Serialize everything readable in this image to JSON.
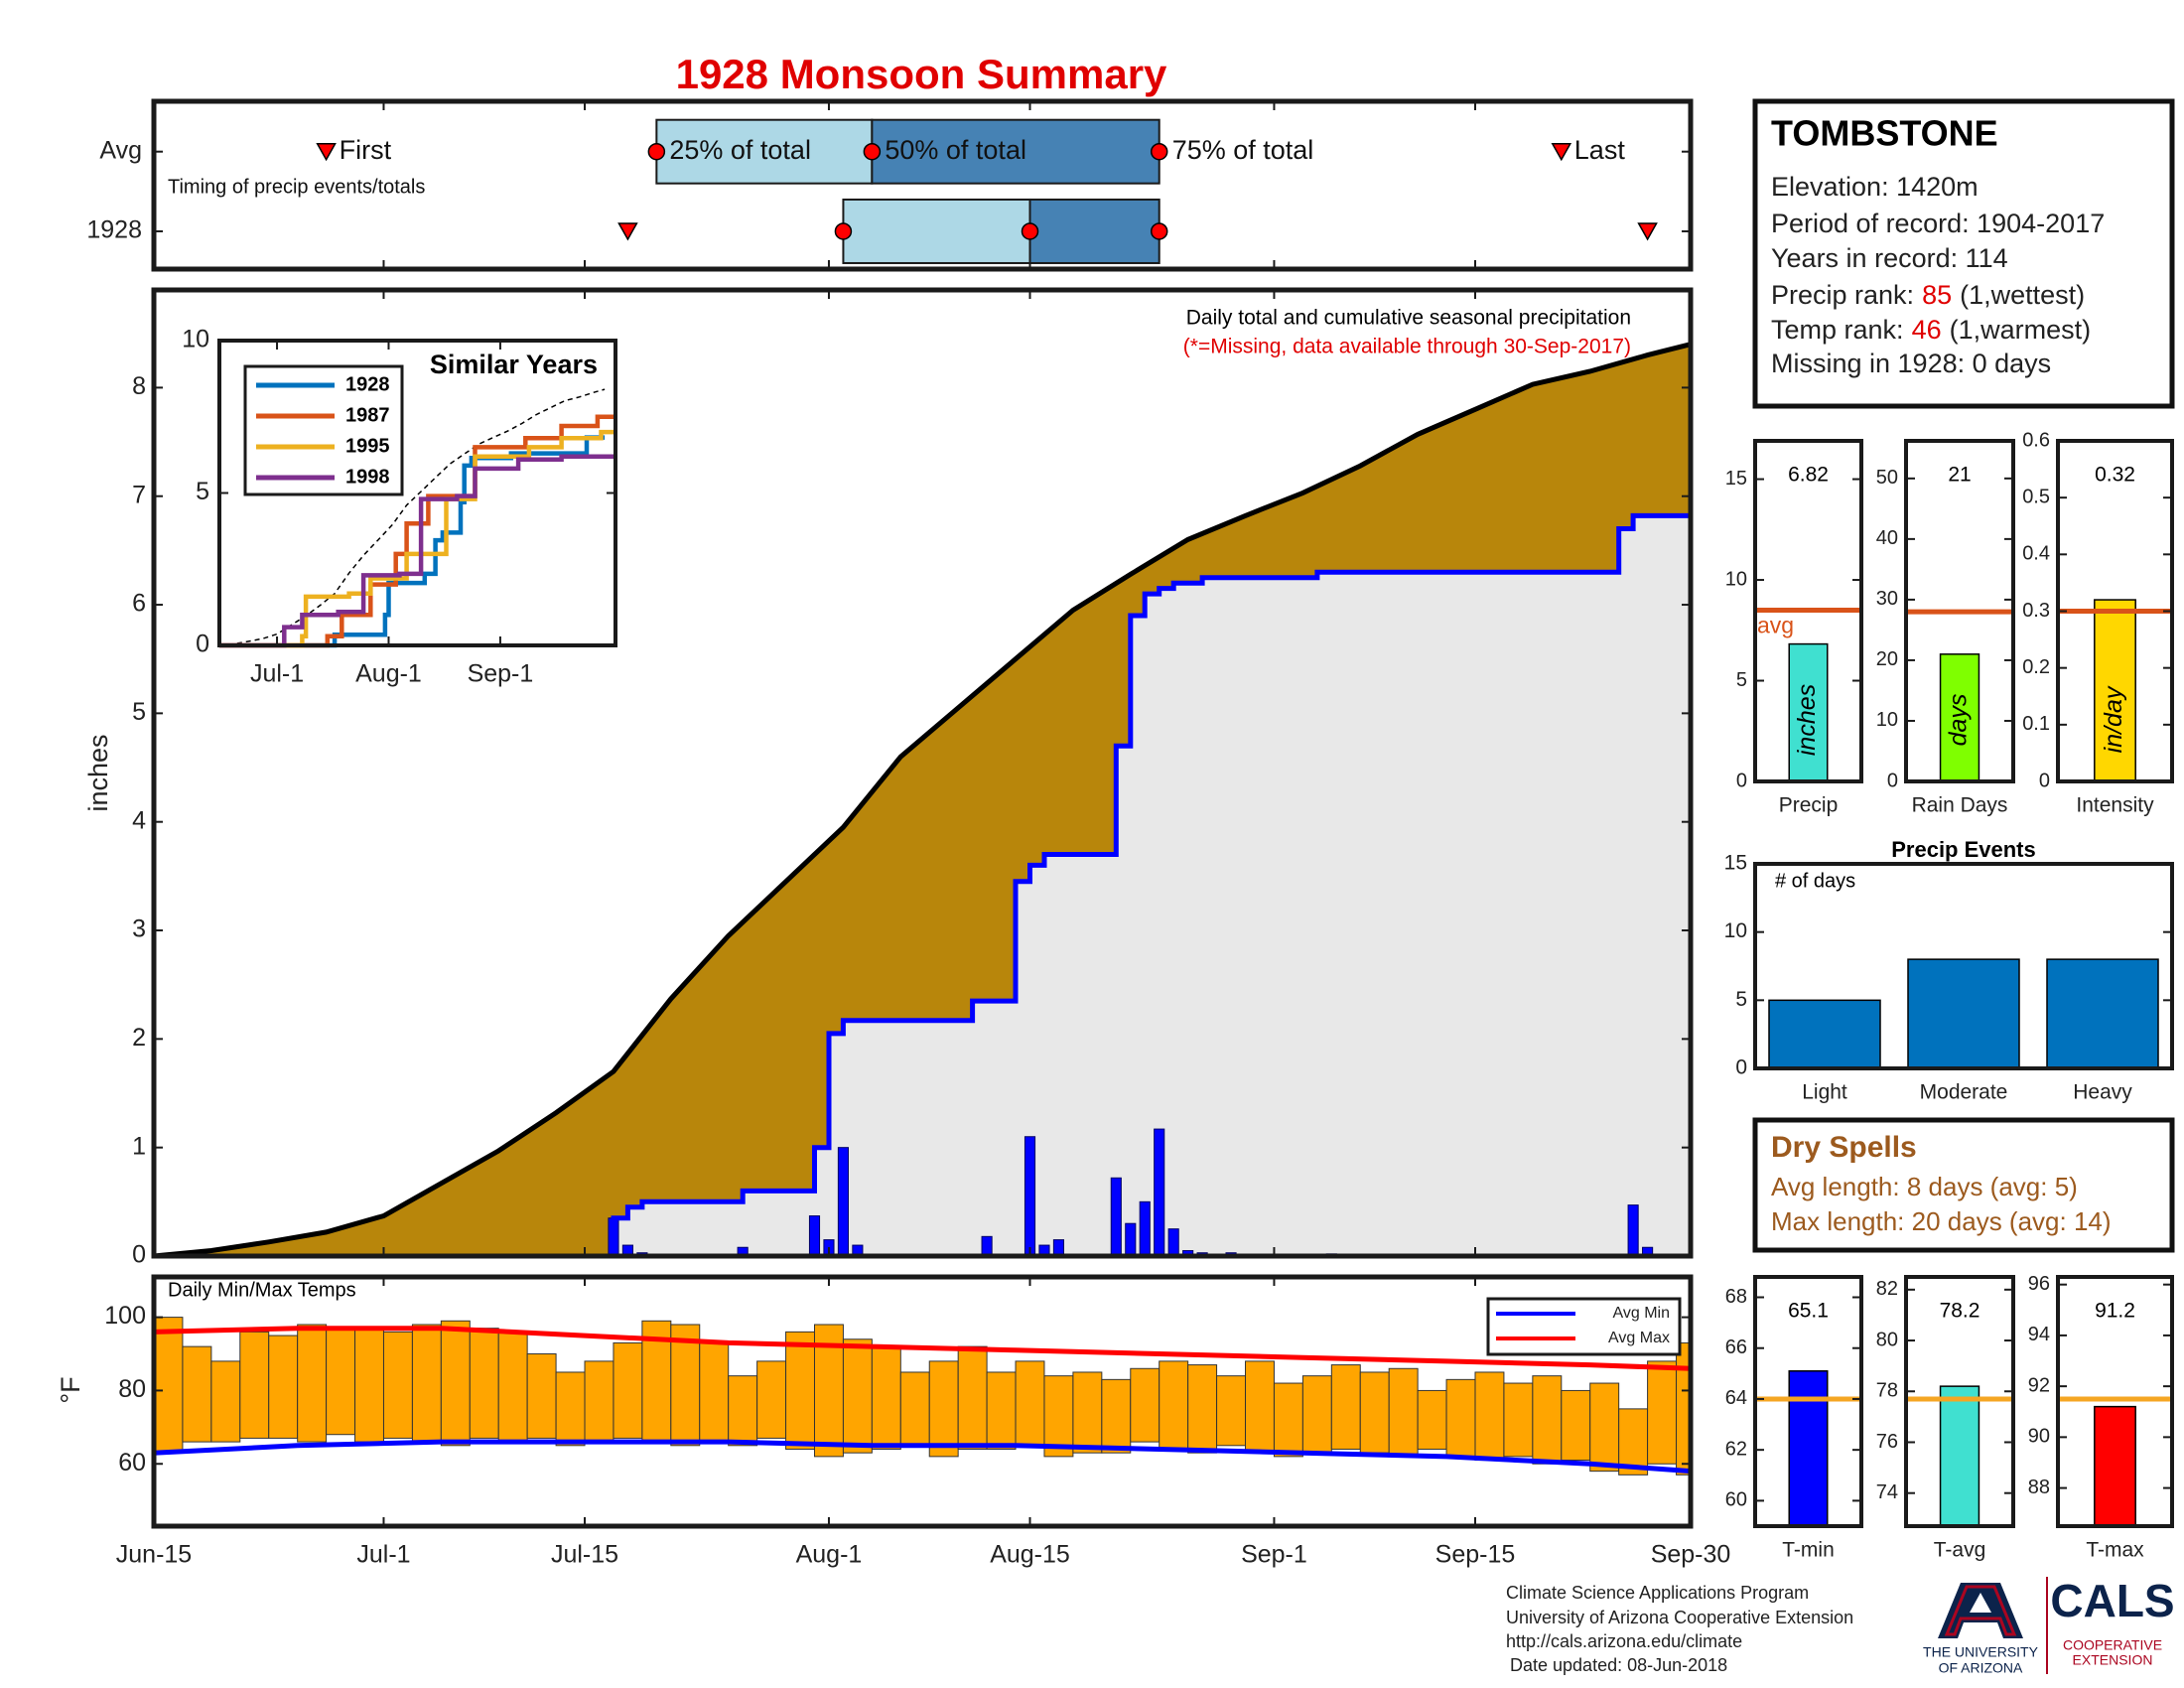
{
  "title": "1928 Monsoon Summary",
  "station": {
    "name": "TOMBSTONE",
    "lines": [
      "Elevation: 1420m",
      "Period of record: 1904-2017",
      "Years in record: 114"
    ],
    "precip_rank": {
      "label": "Precip rank:",
      "value": 85,
      "note": "(1,wettest)"
    },
    "temp_rank": {
      "label": "Temp rank:",
      "value": 46,
      "note": "(1,warmest)"
    },
    "missing": "Missing in 1928: 0 days"
  },
  "dry_spells": {
    "title": "Dry Spells",
    "lines": [
      "Avg length: 8 days (avg: 5)",
      "Max length: 20 days (avg: 14)"
    ]
  },
  "footer": {
    "lines": [
      "Climate Science Applications Program",
      "University of Arizona Cooperative Extension",
      "http://cals.arizona.edu/climate",
      "Date updated: 08-Jun-2018"
    ]
  },
  "logo": {
    "university": [
      "THE UNIVERSITY",
      "OF ARIZONA"
    ],
    "cals": "CALS",
    "extension": [
      "COOPERATIVE",
      "EXTENSION"
    ]
  },
  "chart_data": [
    {
      "type": "cumulative",
      "annotation": "Daily total and cumulative seasonal precipitation",
      "note": "(*=Missing, data available through 30-Sep-2017)",
      "ylabel": "inches",
      "xlim": [
        0,
        107
      ],
      "xticks": [
        0,
        16,
        30,
        47,
        61,
        78,
        92,
        107
      ],
      "ylim": [
        0,
        8.9
      ],
      "yticks": [
        0,
        1,
        2,
        3,
        4,
        5,
        6,
        7,
        8
      ],
      "series": [
        {
          "kind": "line",
          "color": "#000000",
          "fill": "#B8860B",
          "x": [
            0,
            4,
            8,
            12,
            16,
            20,
            24,
            28,
            32,
            36,
            40,
            44,
            48,
            52,
            56,
            60,
            64,
            68,
            72,
            76,
            80,
            84,
            88,
            92,
            96,
            100,
            104,
            107
          ],
          "values": [
            0,
            0.05,
            0.13,
            0.22,
            0.37,
            0.67,
            0.97,
            1.32,
            1.7,
            2.37,
            2.95,
            3.45,
            3.95,
            4.6,
            5.05,
            5.5,
            5.95,
            6.28,
            6.6,
            6.82,
            7.03,
            7.28,
            7.57,
            7.8,
            8.03,
            8.15,
            8.3,
            8.4
          ]
        },
        {
          "kind": "step",
          "color": "#0000FF",
          "fill": "#E8E8E8",
          "x": [
            0,
            32,
            33,
            34,
            41,
            46,
            47,
            48,
            57,
            60,
            61,
            62,
            67,
            68,
            69,
            70,
            71,
            73,
            81,
            102,
            103,
            107
          ],
          "values": [
            0,
            0.35,
            0.45,
            0.5,
            0.6,
            1.0,
            2.05,
            2.17,
            2.35,
            3.45,
            3.6,
            3.7,
            4.7,
            5.9,
            6.1,
            6.15,
            6.2,
            6.25,
            6.3,
            6.7,
            6.82,
            6.82
          ]
        },
        {
          "kind": "bar",
          "color": "#0000FF",
          "x": [
            32,
            33,
            34,
            41,
            46,
            47,
            48,
            49,
            58,
            61,
            62,
            63,
            67,
            68,
            69,
            70,
            71,
            72,
            73,
            75,
            82,
            103,
            104
          ],
          "values": [
            0.35,
            0.1,
            0.03,
            0.08,
            0.37,
            0.15,
            1.0,
            0.1,
            0.18,
            1.1,
            0.1,
            0.15,
            0.72,
            0.3,
            0.5,
            1.17,
            0.25,
            0.05,
            0.03,
            0.03,
            0.02,
            0.47,
            0.08
          ]
        }
      ]
    },
    {
      "type": "line",
      "title": "Similar Years",
      "legend": "upper left",
      "xlim": [
        0,
        110
      ],
      "xticks": [
        {
          "value": 16,
          "label": "Jul-1"
        },
        {
          "value": 47,
          "label": "Aug-1"
        },
        {
          "value": 78,
          "label": "Sep-1"
        }
      ],
      "ylim": [
        0,
        10
      ],
      "yticks": [
        0,
        5,
        10
      ],
      "series": [
        {
          "name": "1928",
          "color": "#0072BD",
          "x": [
            0,
            32,
            46,
            47,
            57,
            60,
            62,
            67,
            68,
            70,
            81,
            102,
            107
          ],
          "values": [
            0,
            0.35,
            1.0,
            2.05,
            2.35,
            3.45,
            3.7,
            4.7,
            5.9,
            6.15,
            6.3,
            6.82,
            6.82
          ]
        },
        {
          "name": "1987",
          "color": "#D95319",
          "x": [
            0,
            30,
            34,
            42,
            49,
            52,
            58,
            71,
            85,
            95,
            105,
            110
          ],
          "values": [
            0,
            0.3,
            1.0,
            2.0,
            3.0,
            4.0,
            4.9,
            6.5,
            6.8,
            7.2,
            7.5,
            7.5
          ]
        },
        {
          "name": "1995",
          "color": "#EDB120",
          "x": [
            0,
            23,
            24,
            36,
            42,
            52,
            63,
            71,
            86,
            95,
            106,
            110
          ],
          "values": [
            0,
            0.3,
            1.6,
            1.7,
            2.2,
            3.0,
            4.8,
            6.2,
            6.5,
            6.8,
            7.0,
            7.0
          ]
        },
        {
          "name": "1998",
          "color": "#7E2F8E",
          "x": [
            0,
            18,
            23,
            33,
            40,
            50,
            56,
            66,
            71,
            83,
            95,
            110
          ],
          "values": [
            0,
            0.6,
            1.0,
            1.1,
            2.3,
            2.35,
            4.8,
            4.9,
            5.8,
            6.1,
            6.2,
            6.2
          ]
        }
      ]
    },
    {
      "type": "range-bar",
      "title": "Daily Min/Max Temps",
      "ylabel": "°F",
      "legend": "upper right",
      "color": "#FFA500",
      "xlim": [
        0,
        107
      ],
      "xticks": [
        {
          "value": 0,
          "label": "Jun-15"
        },
        {
          "value": 16,
          "label": "Jul-1"
        },
        {
          "value": 30,
          "label": "Jul-15"
        },
        {
          "value": 47,
          "label": "Aug-1"
        },
        {
          "value": 61,
          "label": "Aug-15"
        },
        {
          "value": 78,
          "label": "Sep-1"
        },
        {
          "value": 92,
          "label": "Sep-15"
        },
        {
          "value": 107,
          "label": "Sep-30"
        }
      ],
      "ylim": [
        43,
        111
      ],
      "yticks": [
        60,
        80,
        100
      ],
      "x": [
        0,
        2,
        4,
        6,
        8,
        10,
        12,
        14,
        16,
        18,
        20,
        22,
        24,
        26,
        28,
        30,
        32,
        34,
        36,
        38,
        40,
        42,
        44,
        46,
        48,
        50,
        52,
        54,
        56,
        58,
        60,
        62,
        64,
        66,
        68,
        70,
        72,
        74,
        76,
        78,
        80,
        82,
        84,
        86,
        88,
        90,
        92,
        94,
        96,
        98,
        100,
        102,
        104,
        106
      ],
      "high": [
        100,
        92,
        88,
        96,
        95,
        98,
        97,
        97,
        96,
        98,
        99,
        97,
        96,
        90,
        85,
        88,
        93,
        99,
        98,
        93,
        84,
        88,
        96,
        98,
        94,
        92,
        85,
        88,
        92,
        85,
        88,
        84,
        85,
        83,
        86,
        88,
        87,
        84,
        88,
        82,
        84,
        87,
        85,
        86,
        80,
        83,
        85,
        82,
        84,
        80,
        82,
        75,
        88,
        93
      ],
      "low": [
        63,
        66,
        66,
        67,
        67,
        66,
        68,
        66,
        67,
        66,
        65,
        67,
        66,
        67,
        65,
        66,
        67,
        66,
        65,
        66,
        65,
        67,
        64,
        62,
        63,
        64,
        65,
        62,
        64,
        64,
        65,
        62,
        63,
        63,
        66,
        64,
        63,
        65,
        63,
        62,
        63,
        64,
        63,
        62,
        64,
        62,
        61,
        62,
        60,
        61,
        58,
        57,
        60,
        57
      ],
      "lines": [
        {
          "name": "Avg Min",
          "color": "#0000FF",
          "x": [
            0,
            10,
            20,
            30,
            40,
            50,
            60,
            70,
            80,
            90,
            100,
            107
          ],
          "values": [
            63,
            65,
            66,
            66,
            66,
            65,
            65,
            64,
            63,
            62,
            60,
            58
          ]
        },
        {
          "name": "Avg Max",
          "color": "#FF0000",
          "x": [
            0,
            10,
            20,
            30,
            40,
            50,
            60,
            70,
            80,
            90,
            100,
            107
          ],
          "values": [
            96,
            97,
            97,
            95,
            93,
            92,
            91,
            90,
            89,
            88,
            87,
            86
          ]
        }
      ]
    },
    {
      "type": "timing",
      "note": "Timing of precip events/totals",
      "xlim": [
        0,
        107
      ],
      "xticks": [
        0,
        16,
        30,
        47,
        61,
        78,
        92,
        107
      ],
      "colors": [
        "#ADD8E6",
        "#4682B4"
      ],
      "marker_color": "#FF0000",
      "labels": {
        "first": "First",
        "p25": "25% of total",
        "p50": "50% of total",
        "p75": "75% of total",
        "last": "Last"
      },
      "rows": [
        {
          "label": "Avg",
          "first": 12,
          "p25": 35,
          "p50": 50,
          "p75": 70,
          "last": 98
        },
        {
          "label": "1928",
          "first": 33,
          "p25": 48,
          "p50": 61,
          "p75": 70,
          "last": 104
        }
      ]
    },
    {
      "type": "gauge",
      "xlabel": "Precip",
      "unit_label": "inches",
      "value": 6.82,
      "avg": 8.5,
      "avg_label": "avg",
      "color": "#40E0D0",
      "avg_color": "#D95319",
      "ylim": [
        0,
        16.9
      ],
      "yticks": [
        0,
        5,
        10,
        15
      ]
    },
    {
      "type": "gauge",
      "xlabel": "Rain Days",
      "unit_label": "days",
      "value": 21,
      "avg": 28,
      "color": "#7FFF00",
      "avg_color": "#D95319",
      "ylim": [
        0,
        56.2
      ],
      "yticks": [
        0,
        10,
        20,
        30,
        40,
        50
      ]
    },
    {
      "type": "gauge",
      "xlabel": "Intensity",
      "unit_label": "in/day",
      "value": 0.32,
      "avg": 0.3,
      "color": "#FFD700",
      "avg_color": "#D95319",
      "ylim": [
        0,
        0.6
      ],
      "yticks": [
        0,
        0.1,
        0.2,
        0.3,
        0.4,
        0.5,
        0.6
      ]
    },
    {
      "type": "bar",
      "title": "Precip Events",
      "annotation": "# of days",
      "categories": [
        "Light",
        "Moderate",
        "Heavy"
      ],
      "values": [
        5,
        8,
        8
      ],
      "color": "#0072BD",
      "ylim": [
        0,
        15
      ],
      "yticks": [
        0,
        5,
        10,
        15
      ]
    },
    {
      "type": "gauge",
      "xlabel": "T-min",
      "value": 65.1,
      "avg": 64,
      "color": "#0000FF",
      "avg_color": "#F5A623",
      "ylim": [
        59,
        68.8
      ],
      "yticks": [
        60,
        62,
        64,
        66,
        68
      ]
    },
    {
      "type": "gauge",
      "xlabel": "T-avg",
      "value": 78.2,
      "avg": 77.7,
      "color": "#40E0D0",
      "avg_color": "#F5A623",
      "ylim": [
        72.7,
        82.5
      ],
      "yticks": [
        74,
        76,
        78,
        80,
        82
      ]
    },
    {
      "type": "gauge",
      "xlabel": "T-max",
      "value": 91.2,
      "avg": 91.5,
      "color": "#FF0000",
      "avg_color": "#F5A623",
      "ylim": [
        86.5,
        96.3
      ],
      "yticks": [
        88,
        90,
        92,
        94,
        96
      ]
    }
  ]
}
